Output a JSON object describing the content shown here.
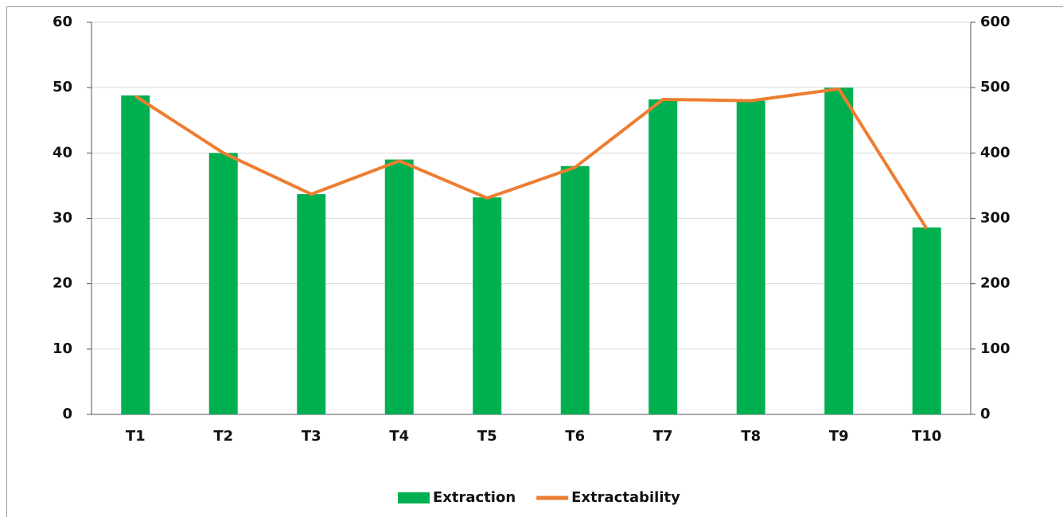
{
  "chart_data": {
    "type": "bar",
    "categories": [
      "T1",
      "T2",
      "T3",
      "T4",
      "T5",
      "T6",
      "T7",
      "T8",
      "T9",
      "T10"
    ],
    "series": [
      {
        "name": "Extraction",
        "type": "bar",
        "color": "#00b050",
        "values": [
          48.8,
          40,
          33.7,
          39,
          33.2,
          38,
          48.2,
          48,
          50,
          28.6
        ]
      },
      {
        "name": "Extractability",
        "type": "line",
        "axis": "y2",
        "color": "#ed7d31",
        "values": [
          487,
          400,
          337,
          388,
          331,
          378,
          482,
          480,
          498,
          284
        ]
      }
    ],
    "ylim": [
      0,
      60
    ],
    "yticks": [
      0,
      10,
      20,
      30,
      40,
      50,
      60
    ],
    "y2lim": [
      0,
      600
    ],
    "y2ticks": [
      0,
      100,
      200,
      300,
      400,
      500,
      600
    ],
    "grid": true,
    "legend": "bottom"
  }
}
